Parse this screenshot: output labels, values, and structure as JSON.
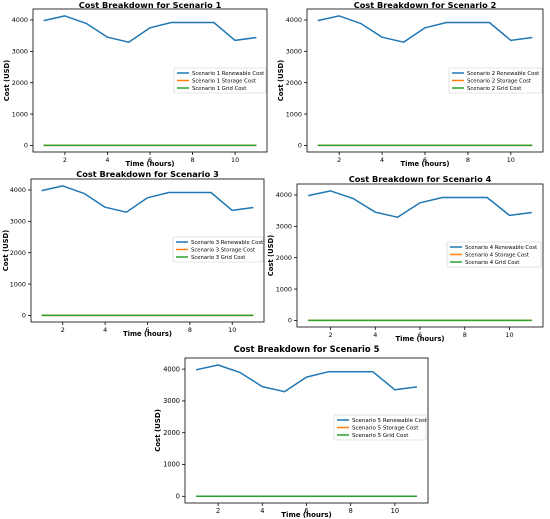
{
  "colors": {
    "renewable": "#1f77b4",
    "storage": "#ff7f0e",
    "grid": "#2ca02c"
  },
  "chart_data": [
    {
      "type": "line",
      "title": "Cost Breakdown for Scenario 1",
      "xlabel": "Time (hours)",
      "ylabel": "Cost (USD)",
      "x": [
        1,
        2,
        3,
        4,
        5,
        6,
        7,
        8,
        9,
        10,
        11
      ],
      "xticks": [
        2,
        4,
        6,
        8,
        10
      ],
      "yticks": [
        0,
        1000,
        2000,
        3000,
        4000
      ],
      "xlim": [
        0.5,
        11.5
      ],
      "ylim": [
        -210,
        4350
      ],
      "legend_position": "center-right",
      "series": [
        {
          "name": "Scenario 1 Renewable Cost",
          "values": [
            3980,
            4130,
            3890,
            3450,
            3290,
            3750,
            3920,
            3920,
            3920,
            3350,
            3440
          ]
        },
        {
          "name": "Scenario 1 Storage Cost",
          "values": [
            0,
            0,
            0,
            0,
            0,
            0,
            0,
            0,
            0,
            0,
            0
          ]
        },
        {
          "name": "Scenario 1 Grid Cost",
          "values": [
            0,
            0,
            0,
            0,
            0,
            0,
            0,
            0,
            0,
            0,
            0
          ]
        }
      ]
    },
    {
      "type": "line",
      "title": "Cost Breakdown for Scenario 2",
      "xlabel": "Time (hours)",
      "ylabel": "Cost (USD)",
      "x": [
        1,
        2,
        3,
        4,
        5,
        6,
        7,
        8,
        9,
        10,
        11
      ],
      "xticks": [
        2,
        4,
        6,
        8,
        10
      ],
      "yticks": [
        0,
        1000,
        2000,
        3000,
        4000
      ],
      "xlim": [
        0.5,
        11.5
      ],
      "ylim": [
        -210,
        4350
      ],
      "legend_position": "center-right",
      "series": [
        {
          "name": "Scenario 2 Renewable Cost",
          "values": [
            3980,
            4130,
            3890,
            3450,
            3290,
            3750,
            3920,
            3920,
            3920,
            3350,
            3440
          ]
        },
        {
          "name": "Scenario 2 Storage Cost",
          "values": [
            0,
            0,
            0,
            0,
            0,
            0,
            0,
            0,
            0,
            0,
            0
          ]
        },
        {
          "name": "Scenario 2 Grid Cost",
          "values": [
            0,
            0,
            0,
            0,
            0,
            0,
            0,
            0,
            0,
            0,
            0
          ]
        }
      ]
    },
    {
      "type": "line",
      "title": "Cost Breakdown for Scenario 3",
      "xlabel": "Time (hours)",
      "ylabel": "Cost (USD)",
      "x": [
        1,
        2,
        3,
        4,
        5,
        6,
        7,
        8,
        9,
        10,
        11
      ],
      "xticks": [
        2,
        4,
        6,
        8,
        10
      ],
      "yticks": [
        0,
        1000,
        2000,
        3000,
        4000
      ],
      "xlim": [
        0.5,
        11.5
      ],
      "ylim": [
        -210,
        4350
      ],
      "legend_position": "center-right",
      "series": [
        {
          "name": "Scenario 3 Renewable Cost",
          "values": [
            3980,
            4130,
            3890,
            3450,
            3290,
            3750,
            3920,
            3920,
            3920,
            3350,
            3440
          ]
        },
        {
          "name": "Scenario 3 Storage Cost",
          "values": [
            0,
            0,
            0,
            0,
            0,
            0,
            0,
            0,
            0,
            0,
            0
          ]
        },
        {
          "name": "Scenario 3 Grid Cost",
          "values": [
            0,
            0,
            0,
            0,
            0,
            0,
            0,
            0,
            0,
            0,
            0
          ]
        }
      ]
    },
    {
      "type": "line",
      "title": "Cost Breakdown for Scenario 4",
      "xlabel": "Time (hours)",
      "ylabel": "Cost (USD)",
      "x": [
        1,
        2,
        3,
        4,
        5,
        6,
        7,
        8,
        9,
        10,
        11
      ],
      "xticks": [
        2,
        4,
        6,
        8,
        10
      ],
      "yticks": [
        0,
        1000,
        2000,
        3000,
        4000
      ],
      "xlim": [
        0.5,
        11.5
      ],
      "ylim": [
        -210,
        4350
      ],
      "legend_position": "center-right",
      "series": [
        {
          "name": "Scenario 4 Renewable Cost",
          "values": [
            3980,
            4130,
            3890,
            3450,
            3290,
            3750,
            3920,
            3920,
            3920,
            3350,
            3440
          ]
        },
        {
          "name": "Scenario 4 Storage Cost",
          "values": [
            0,
            0,
            0,
            0,
            0,
            0,
            0,
            0,
            0,
            0,
            0
          ]
        },
        {
          "name": "Scenario 4 Grid Cost",
          "values": [
            0,
            0,
            0,
            0,
            0,
            0,
            0,
            0,
            0,
            0,
            0
          ]
        }
      ]
    },
    {
      "type": "line",
      "title": "Cost Breakdown for Scenario 5",
      "xlabel": "Time (hours)",
      "ylabel": "Cost (USD)",
      "x": [
        1,
        2,
        3,
        4,
        5,
        6,
        7,
        8,
        9,
        10,
        11
      ],
      "xticks": [
        2,
        4,
        6,
        8,
        10
      ],
      "yticks": [
        0,
        1000,
        2000,
        3000,
        4000
      ],
      "xlim": [
        0.5,
        11.5
      ],
      "ylim": [
        -210,
        4350
      ],
      "legend_position": "center-right",
      "series": [
        {
          "name": "Scenario 5 Renewable Cost",
          "values": [
            3980,
            4130,
            3890,
            3450,
            3290,
            3750,
            3920,
            3920,
            3920,
            3350,
            3440
          ]
        },
        {
          "name": "Scenario 5 Storage Cost",
          "values": [
            0,
            0,
            0,
            0,
            0,
            0,
            0,
            0,
            0,
            0,
            0
          ]
        },
        {
          "name": "Scenario 5 Grid Cost",
          "values": [
            0,
            0,
            0,
            0,
            0,
            0,
            0,
            0,
            0,
            0,
            0
          ]
        }
      ]
    }
  ]
}
